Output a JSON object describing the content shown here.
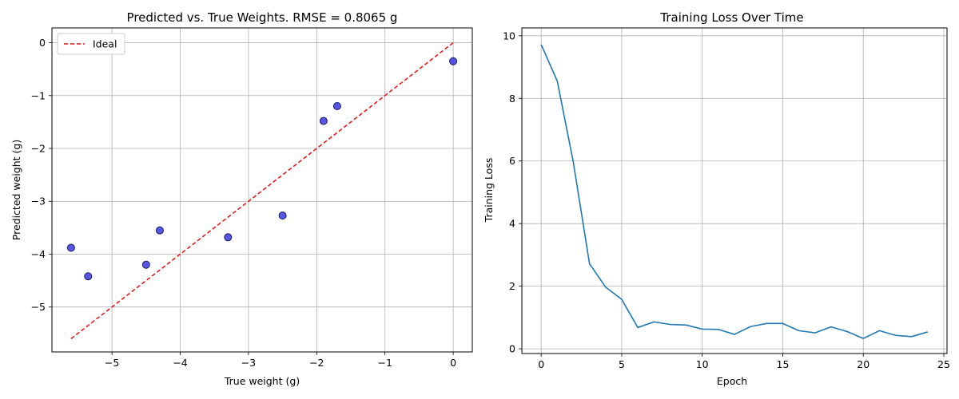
{
  "chart_data": [
    {
      "type": "scatter",
      "title": "Predicted vs. True Weights. RMSE = 0.8065 g",
      "xlabel": "True weight (g)",
      "ylabel": "Predicted weight (g)",
      "xlim": [
        -5.88,
        0.28
      ],
      "ylim": [
        -5.85,
        0.28
      ],
      "xticks": [
        -5,
        -4,
        -3,
        -2,
        -1,
        0
      ],
      "yticks": [
        -5,
        -4,
        -3,
        -2,
        -1,
        0
      ],
      "grid": true,
      "legend_position": "upper-left",
      "series": [
        {
          "kind": "points",
          "x": [
            -5.6,
            -5.35,
            -4.5,
            -4.3,
            -3.3,
            -2.5,
            -1.9,
            -1.7,
            0.0
          ],
          "y": [
            -3.88,
            -4.42,
            -4.2,
            -3.55,
            -3.68,
            -3.27,
            -1.48,
            -1.2,
            -0.35
          ],
          "color": "#3a3ae0",
          "edge_color": "#1a1a66"
        },
        {
          "kind": "dashed-line",
          "name": "Ideal",
          "x": [
            -5.6,
            0.0
          ],
          "y": [
            -5.6,
            0.0
          ],
          "color": "#e41a1c"
        }
      ]
    },
    {
      "type": "line",
      "title": "Training Loss Over Time",
      "xlabel": "Epoch",
      "ylabel": "Training Loss",
      "xlim": [
        -1.2,
        25.2
      ],
      "ylim": [
        -0.15,
        10.25
      ],
      "xticks": [
        0,
        5,
        10,
        15,
        20,
        25
      ],
      "yticks": [
        0,
        2,
        4,
        6,
        8,
        10
      ],
      "grid": true,
      "series": [
        {
          "x": [
            0,
            1,
            2,
            3,
            4,
            5,
            6,
            7,
            8,
            9,
            10,
            11,
            12,
            13,
            14,
            15,
            16,
            17,
            18,
            19,
            20,
            21,
            22,
            23,
            24
          ],
          "y": [
            9.72,
            8.55,
            5.95,
            2.72,
            1.97,
            1.58,
            0.68,
            0.86,
            0.78,
            0.76,
            0.63,
            0.62,
            0.46,
            0.71,
            0.81,
            0.81,
            0.58,
            0.51,
            0.7,
            0.55,
            0.33,
            0.58,
            0.43,
            0.39,
            0.54
          ],
          "color": "#1f77b4"
        }
      ]
    }
  ]
}
